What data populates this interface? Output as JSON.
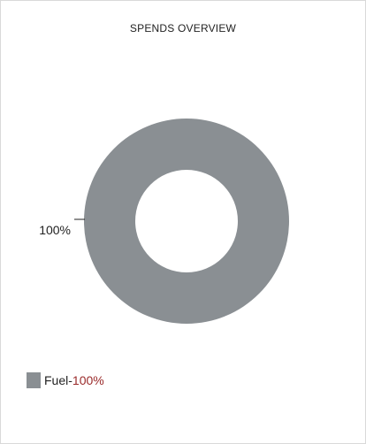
{
  "card": {
    "title": "SPENDS OVERVIEW"
  },
  "chart_data": {
    "type": "pie",
    "title": "SPENDS OVERVIEW",
    "donut": true,
    "slices": [
      {
        "label": "Fuel",
        "value": 100,
        "percent_label": "100%",
        "color": "#8a8f93"
      }
    ],
    "legend_position": "bottom-left",
    "label_text": "100%"
  },
  "legend": {
    "items": [
      {
        "name": "Fuel",
        "separator": "-",
        "percent": "100%"
      }
    ]
  },
  "colors": {
    "slice": "#8a8f93",
    "percent_text": "#9a2a2a"
  }
}
